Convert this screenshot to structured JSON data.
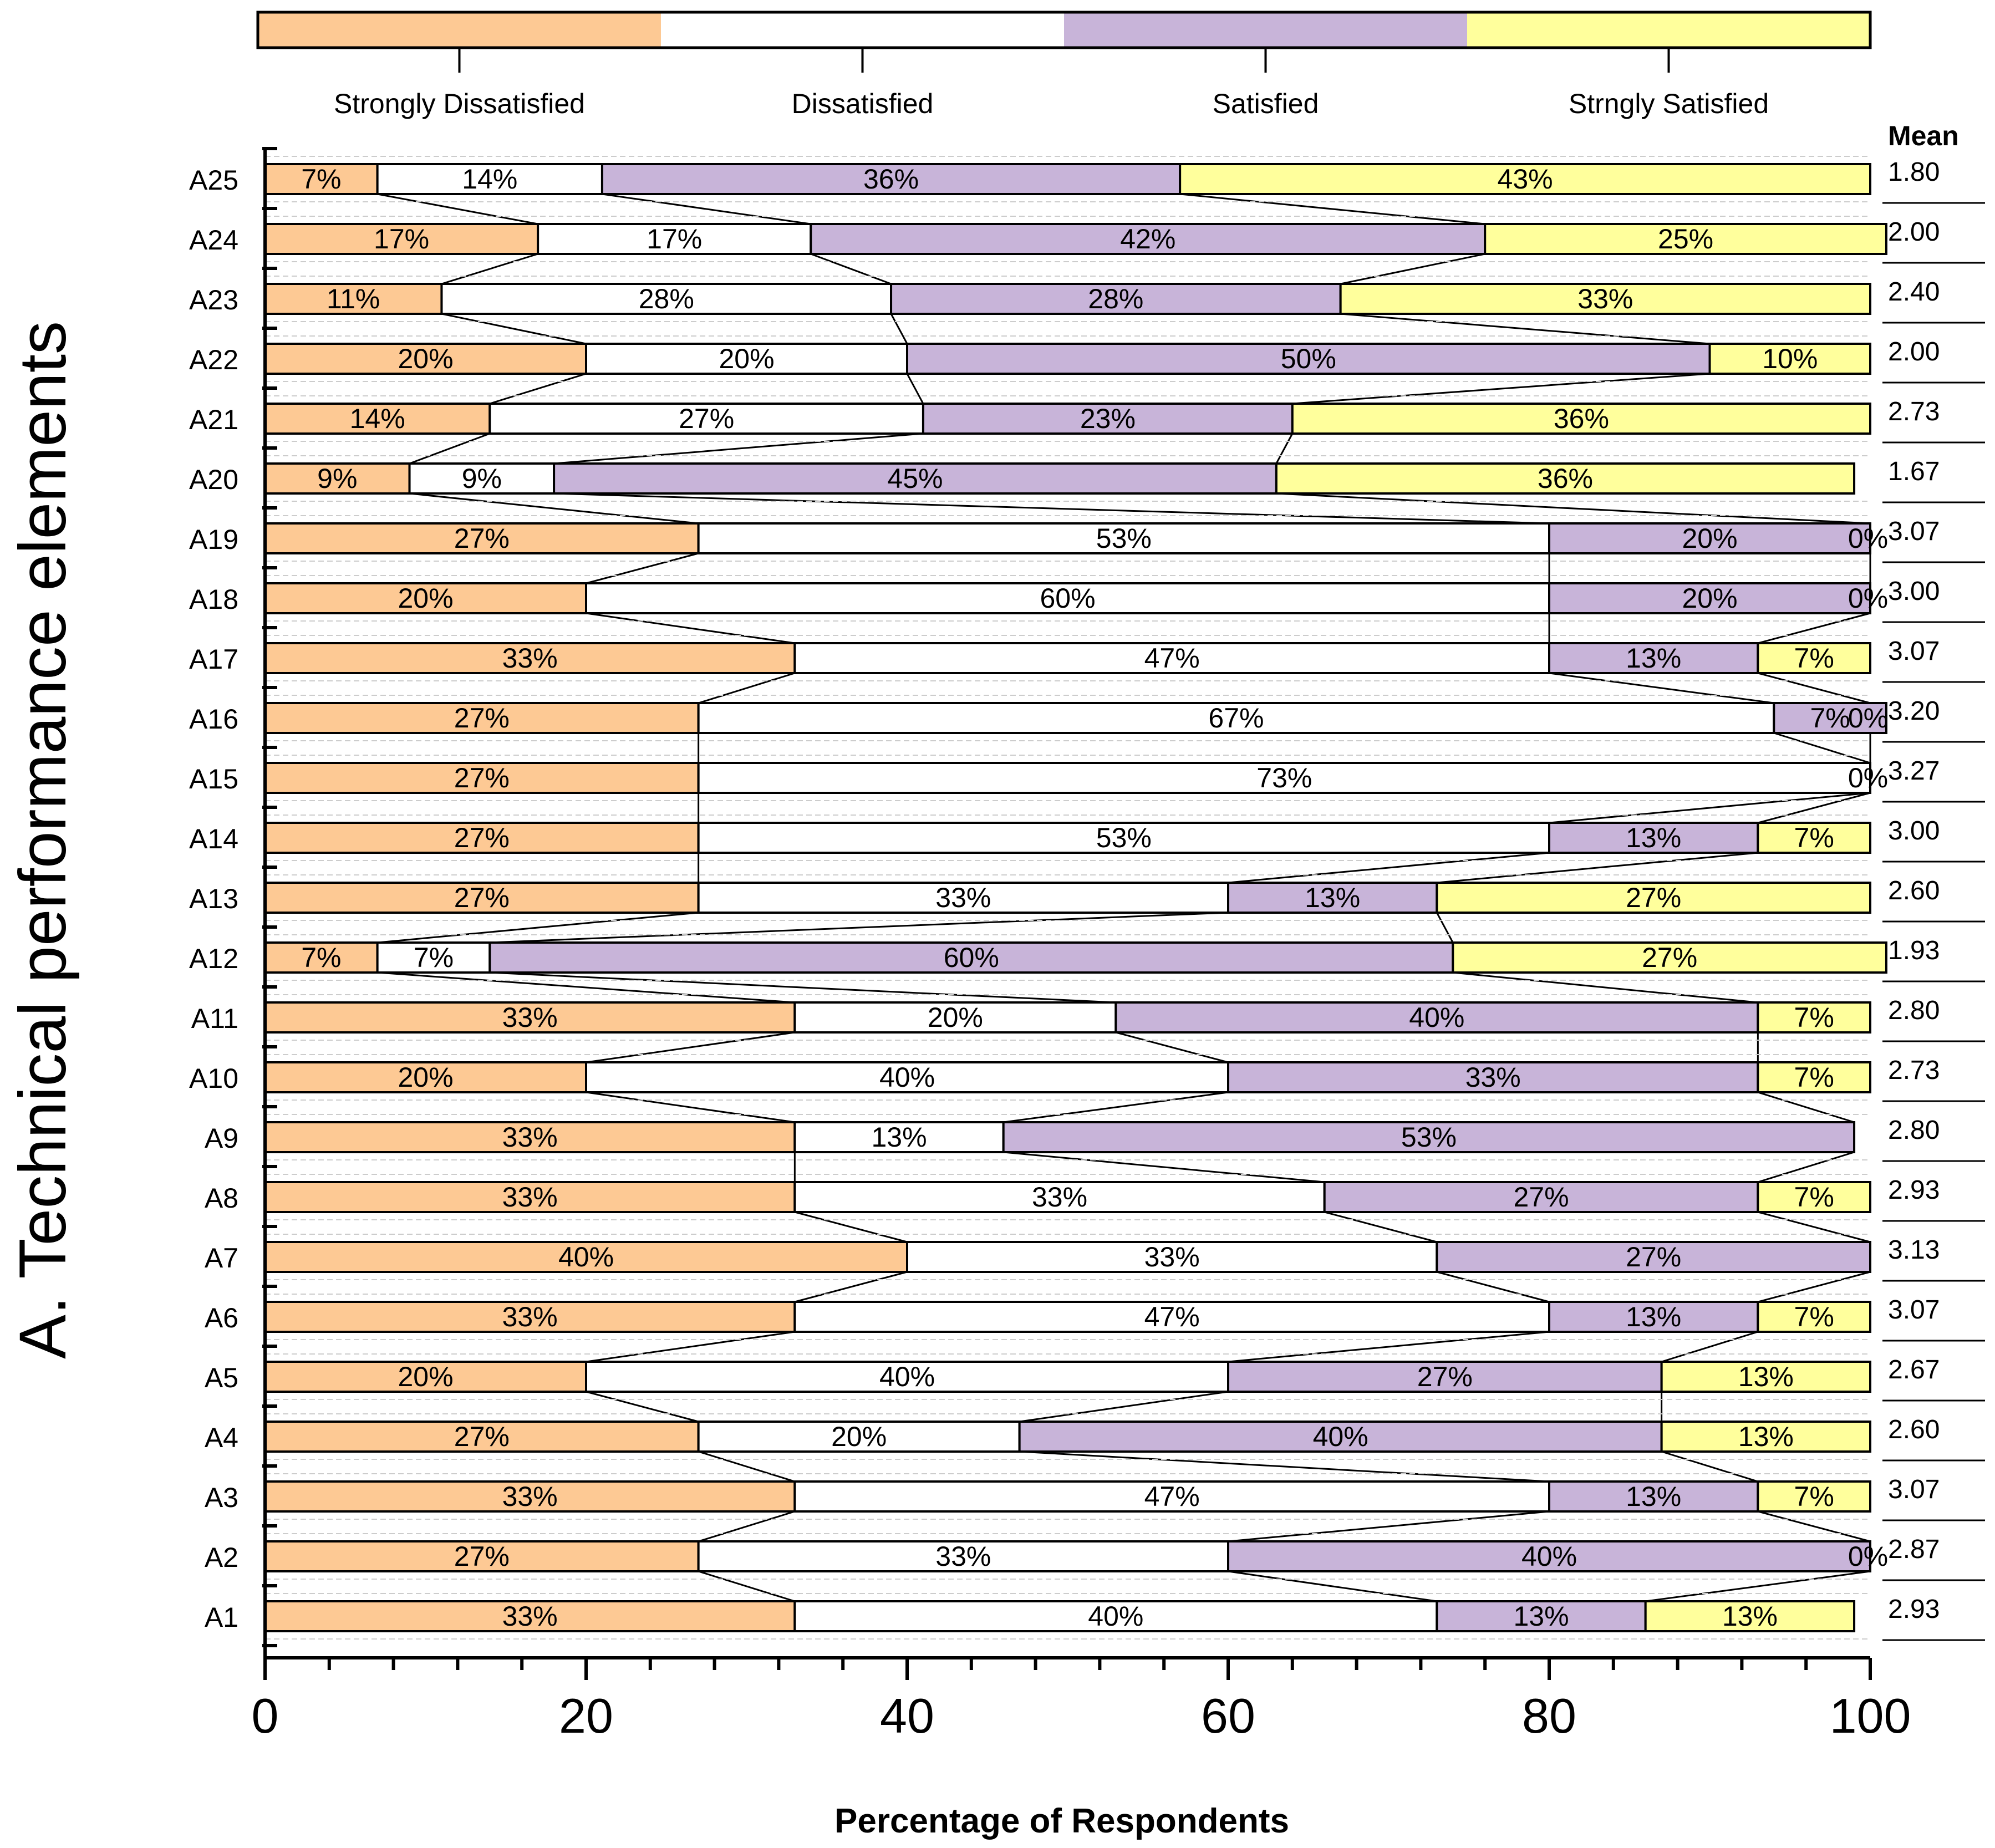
{
  "chart_data": {
    "type": "bar",
    "orientation": "horizontal-stacked-100",
    "ylabel": "A. Technical performance elements",
    "xlabel": "Percentage of Respondents",
    "xlim": [
      0,
      100
    ],
    "x_ticks": [
      0,
      20,
      40,
      60,
      80,
      100
    ],
    "x_tick_labels": [
      "0",
      "20",
      "40",
      "60",
      "80",
      "100"
    ],
    "mean_header": "Mean",
    "colors": {
      "Strongly Dissatisfied": "#FDC994",
      "Dissatisfied": "#FFFFFF",
      "Satisfied": "#C8B4D9",
      "Strngly Satisfied": "#FFFF9C"
    },
    "legend": [
      "Strongly Dissatisfied",
      "Dissatisfied",
      "Satisfied",
      "Strngly Satisfied"
    ],
    "categories": [
      "A25",
      "A24",
      "A23",
      "A22",
      "A21",
      "A20",
      "A19",
      "A18",
      "A17",
      "A16",
      "A15",
      "A14",
      "A13",
      "A12",
      "A11",
      "A10",
      "A9",
      "A8",
      "A7",
      "A6",
      "A5",
      "A4",
      "A3",
      "A2",
      "A1"
    ],
    "series": [
      {
        "name": "Strongly Dissatisfied",
        "values": [
          7,
          17,
          11,
          20,
          14,
          9,
          27,
          20,
          33,
          27,
          27,
          27,
          27,
          7,
          33,
          20,
          33,
          33,
          40,
          33,
          20,
          27,
          33,
          27,
          33
        ]
      },
      {
        "name": "Dissatisfied",
        "values": [
          14,
          17,
          28,
          20,
          27,
          9,
          53,
          60,
          47,
          67,
          73,
          53,
          33,
          7,
          20,
          40,
          13,
          33,
          33,
          47,
          40,
          20,
          47,
          33,
          40
        ]
      },
      {
        "name": "Satisfied",
        "values": [
          36,
          42,
          28,
          50,
          23,
          45,
          20,
          20,
          13,
          7,
          0,
          13,
          13,
          60,
          40,
          33,
          53,
          27,
          27,
          13,
          27,
          40,
          13,
          40,
          13
        ]
      },
      {
        "name": "Strngly Satisfied",
        "values": [
          43,
          25,
          33,
          10,
          36,
          36,
          0,
          0,
          7,
          0,
          0,
          7,
          27,
          27,
          7,
          7,
          0,
          7,
          0,
          7,
          13,
          13,
          7,
          0,
          13
        ]
      }
    ],
    "value_labels": [
      [
        "7%",
        "14%",
        "36%",
        "43%"
      ],
      [
        "17%",
        "17%",
        "42%",
        "25%"
      ],
      [
        "11%",
        "28%",
        "28%",
        "33%"
      ],
      [
        "20%",
        "20%",
        "50%",
        "10%"
      ],
      [
        "14%",
        "27%",
        "23%",
        "36%"
      ],
      [
        "9%",
        "9%",
        "45%",
        "36%"
      ],
      [
        "27%",
        "53%",
        "20%",
        "0%"
      ],
      [
        "20%",
        "60%",
        "20%",
        "0%"
      ],
      [
        "33%",
        "47%",
        "13%",
        "7%"
      ],
      [
        "27%",
        "67%",
        "7%",
        "0%"
      ],
      [
        "27%",
        "73%",
        "",
        "0%"
      ],
      [
        "27%",
        "53%",
        "13%",
        "7%"
      ],
      [
        "27%",
        "33%",
        "13%",
        "27%"
      ],
      [
        "7%",
        "7%",
        "60%",
        "27%"
      ],
      [
        "33%",
        "20%",
        "40%",
        "7%"
      ],
      [
        "20%",
        "40%",
        "33%",
        "7%"
      ],
      [
        "33%",
        "13%",
        "53%",
        ""
      ],
      [
        "33%",
        "33%",
        "27%",
        "7%"
      ],
      [
        "40%",
        "33%",
        "27%",
        ""
      ],
      [
        "33%",
        "47%",
        "13%",
        "7%"
      ],
      [
        "20%",
        "40%",
        "27%",
        "13%"
      ],
      [
        "27%",
        "20%",
        "40%",
        "13%"
      ],
      [
        "33%",
        "47%",
        "13%",
        "7%"
      ],
      [
        "27%",
        "33%",
        "40%",
        "0%"
      ],
      [
        "33%",
        "40%",
        "13%",
        "13%"
      ]
    ],
    "means": [
      "1.80",
      "2.00",
      "2.40",
      "2.00",
      "2.73",
      "1.67",
      "3.07",
      "3.00",
      "3.07",
      "3.20",
      "3.27",
      "3.00",
      "2.60",
      "1.93",
      "2.80",
      "2.73",
      "2.80",
      "2.93",
      "3.13",
      "3.07",
      "2.67",
      "2.60",
      "3.07",
      "2.87",
      "2.93"
    ]
  }
}
